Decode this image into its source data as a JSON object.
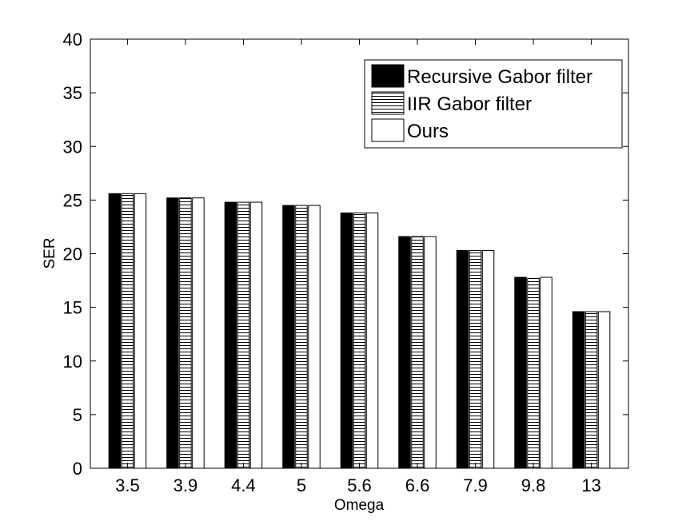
{
  "chart_data": {
    "type": "bar",
    "xlabel": "Omega",
    "ylabel": "SER",
    "categories": [
      "3.5",
      "3.9",
      "4.4",
      "5",
      "5.6",
      "6.6",
      "7.9",
      "9.8",
      "13"
    ],
    "ylim": [
      0,
      40
    ],
    "yticks": [
      0,
      5,
      10,
      15,
      20,
      25,
      30,
      35,
      40
    ],
    "legend_position": "top-right",
    "grid": false,
    "series": [
      {
        "name": "Recursive Gabor filter",
        "pattern": "solid",
        "color": "#000000",
        "values": [
          25.6,
          25.2,
          24.8,
          24.5,
          23.8,
          21.6,
          20.3,
          17.8,
          14.6
        ]
      },
      {
        "name": "IIR Gabor filter",
        "pattern": "horizontal-stripes",
        "color": "#000000",
        "values": [
          25.6,
          25.2,
          24.8,
          24.5,
          23.8,
          21.6,
          20.3,
          17.7,
          14.6
        ]
      },
      {
        "name": "Ours",
        "pattern": "empty",
        "color": "#ffffff",
        "values": [
          25.6,
          25.2,
          24.8,
          24.5,
          23.8,
          21.6,
          20.3,
          17.8,
          14.6
        ]
      }
    ]
  }
}
